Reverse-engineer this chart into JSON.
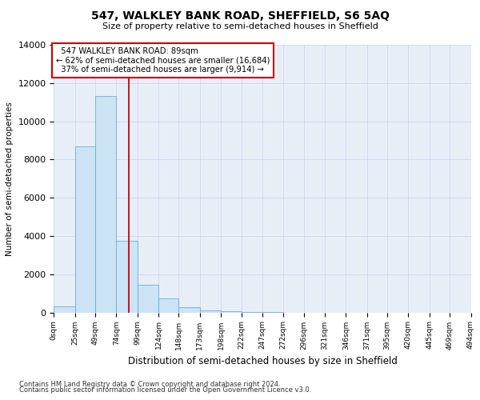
{
  "title": "547, WALKLEY BANK ROAD, SHEFFIELD, S6 5AQ",
  "subtitle": "Size of property relative to semi-detached houses in Sheffield",
  "xlabel": "Distribution of semi-detached houses by size in Sheffield",
  "ylabel": "Number of semi-detached properties",
  "property_size": 89,
  "property_label": "547 WALKLEY BANK ROAD: 89sqm",
  "pct_smaller": 62,
  "pct_larger": 37,
  "count_smaller": 16684,
  "count_larger": 9914,
  "bar_color": "#cce4f5",
  "bar_edge_color": "#6aaed6",
  "vline_color": "#cc0000",
  "annotation_box_color": "#cc0000",
  "footnote1": "Contains HM Land Registry data © Crown copyright and database right 2024.",
  "footnote2": "Contains public sector information licensed under the Open Government Licence v3.0.",
  "bin_edges": [
    0,
    25,
    49,
    74,
    99,
    124,
    148,
    173,
    198,
    222,
    247,
    272,
    296,
    321,
    346,
    371,
    395,
    420,
    445,
    469,
    494
  ],
  "bin_counts": [
    300,
    8700,
    11300,
    3750,
    1450,
    750,
    280,
    130,
    60,
    25,
    8,
    4,
    2,
    1,
    1,
    0,
    0,
    0,
    0,
    0
  ],
  "ylim": [
    0,
    14000
  ],
  "yticks": [
    0,
    2000,
    4000,
    6000,
    8000,
    10000,
    12000,
    14000
  ],
  "tick_labels": [
    "0sqm",
    "25sqm",
    "49sqm",
    "74sqm",
    "99sqm",
    "124sqm",
    "148sqm",
    "173sqm",
    "198sqm",
    "222sqm",
    "247sqm",
    "272sqm",
    "296sqm",
    "321sqm",
    "346sqm",
    "371sqm",
    "395sqm",
    "420sqm",
    "445sqm",
    "469sqm",
    "494sqm"
  ],
  "bg_color": "#e8eef8",
  "grid_color": "#c8d4e8"
}
